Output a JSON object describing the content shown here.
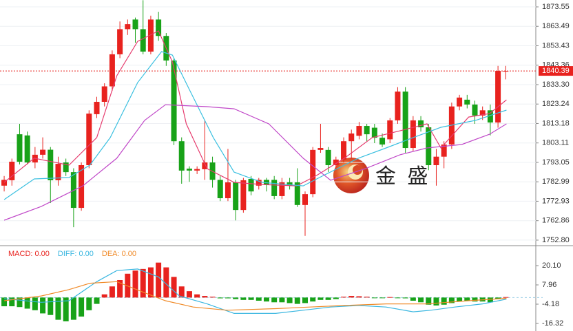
{
  "chart_data": [
    {
      "type": "candlestick",
      "up_color": "#e8221e",
      "down_color": "#18a218",
      "grid": true,
      "open": [
        1781,
        1783.8,
        1807.6,
        1807,
        1793,
        1797,
        1799.6,
        1783.8,
        1793,
        1788,
        1769.5,
        1791.6,
        1818,
        1824.4,
        1832.4,
        1849,
        1862,
        1867,
        1862,
        1850.4,
        1867,
        1858.5,
        1845.8,
        1804,
        1789.8,
        1788.8,
        1789.5,
        1793,
        1784,
        1774.5,
        1782.7,
        1768.4,
        1784.5,
        1781,
        1784,
        1784,
        1775.6,
        1782.7,
        1782.7,
        1771,
        1776.6,
        1799.5,
        1799.5,
        1791.6,
        1794.5,
        1804,
        1806.8,
        1811.9,
        1811,
        1805.8,
        1805,
        1814.8,
        1829.7,
        1800.5,
        1814.8,
        1811.2,
        1791.6,
        1796,
        1802.3,
        1822,
        1825.5,
        1823,
        1817.3,
        1820,
        1813.7,
        1840.3
      ],
      "high": [
        1786,
        1795,
        1813,
        1809,
        1801,
        1806,
        1801,
        1796,
        1795,
        1790,
        1793,
        1820,
        1827,
        1834,
        1851,
        1866,
        1867,
        1868,
        1877,
        1869,
        1871,
        1860,
        1847,
        1806,
        1791,
        1791,
        1815,
        1796,
        1786,
        1800,
        1784,
        1785,
        1786,
        1785,
        1785,
        1786,
        1785,
        1785,
        1790,
        1778,
        1801,
        1813,
        1801,
        1796,
        1806,
        1810,
        1814,
        1813,
        1813,
        1808,
        1816,
        1832,
        1832,
        1817,
        1817,
        1813,
        1800,
        1804,
        1824,
        1828,
        1828,
        1825,
        1822,
        1823,
        1843,
        1843
      ],
      "low": [
        1778,
        1781,
        1792,
        1792,
        1790,
        1795,
        1772,
        1781,
        1786,
        1759.5,
        1768,
        1790,
        1816,
        1822,
        1830,
        1847,
        1859,
        1855,
        1849,
        1849,
        1856,
        1843,
        1802,
        1782,
        1783,
        1787,
        1784,
        1780,
        1773,
        1773,
        1763,
        1767,
        1776,
        1779,
        1778,
        1774,
        1774,
        1779,
        1770,
        1755,
        1775,
        1798,
        1788,
        1789,
        1793,
        1795,
        1805,
        1804,
        1803,
        1801,
        1803,
        1813,
        1798,
        1799,
        1809,
        1789,
        1781,
        1790,
        1800,
        1820,
        1821,
        1813,
        1815,
        1807,
        1811,
        1836
      ],
      "close": [
        1784,
        1793.4,
        1793.4,
        1793,
        1797,
        1799.6,
        1783.8,
        1792.3,
        1788,
        1769.5,
        1791.6,
        1818.3,
        1824.4,
        1832.4,
        1849,
        1862,
        1864.6,
        1862,
        1850.4,
        1867,
        1858.5,
        1845.8,
        1804,
        1788.8,
        1788.8,
        1789.6,
        1793,
        1784,
        1774.5,
        1782.7,
        1768.4,
        1783.8,
        1778,
        1784,
        1781.6,
        1775.6,
        1782.7,
        1781,
        1771,
        1776.6,
        1799.5,
        1800.5,
        1791.6,
        1794.5,
        1804,
        1808,
        1811.9,
        1807.6,
        1805.8,
        1802.3,
        1814.8,
        1829.7,
        1800.5,
        1814.8,
        1811.2,
        1791.6,
        1796,
        1802.3,
        1822,
        1826.6,
        1823,
        1817.3,
        1820,
        1813.7,
        1840.4,
        1840.39
      ],
      "xlim": [
        -0.54,
        68.9
      ],
      "ylim": [
        1750.64,
        1877.11
      ],
      "yticks": [
        {
          "value": 1752.8,
          "label": "1752.80"
        },
        1762.86,
        1772.93,
        1782.99,
        1793.05,
        1803.11,
        1813.18,
        1823.24,
        {
          "value": 1833.3,
          "label": "1833.30"
        },
        1843.36,
        1853.43,
        1863.49,
        1873.55
      ],
      "overlays": [
        {
          "color": "#e63c6e",
          "x": [
            0,
            3.9,
            8.4,
            12,
            14.6,
            17.3,
            20,
            21.8,
            23.6,
            26.3,
            29.8,
            33.4,
            37.9,
            40.5,
            44.1,
            47.7,
            51.3,
            54.8,
            56.6,
            60.2,
            62.9,
            65.1
          ],
          "values": [
            1782.7,
            1795.2,
            1791.6,
            1805.9,
            1837.9,
            1855.7,
            1861.1,
            1845.1,
            1813,
            1789.8,
            1782.7,
            1781.6,
            1780.9,
            1786.3,
            1795.2,
            1805.9,
            1809.4,
            1813,
            1800.5,
            1816.5,
            1818.3,
            1825.4
          ]
        },
        {
          "color": "#3cc0e0",
          "x": [
            0,
            3.9,
            8.4,
            11.1,
            13.75,
            17.3,
            20.4,
            21.8,
            24,
            27.1,
            29.8,
            33.4,
            38.75,
            41.4,
            45.9,
            49.5,
            53,
            56.6,
            61.1,
            65.1
          ],
          "values": [
            1773.8,
            1784.5,
            1785.2,
            1791.6,
            1805.9,
            1834.4,
            1850.4,
            1848.6,
            1830.8,
            1805.9,
            1788,
            1782.7,
            1780.9,
            1786.3,
            1795.2,
            1800.5,
            1805.9,
            1811.2,
            1814.8,
            1820.1
          ]
        },
        {
          "color": "#c048c8",
          "x": [
            0,
            4.8,
            10.2,
            14.6,
            18.2,
            20.9,
            26.3,
            29.8,
            34.3,
            38.75,
            42.3,
            46.8,
            51.3,
            54.8,
            59.3,
            62.9,
            65.1
          ],
          "values": [
            1763.1,
            1770.2,
            1780.9,
            1795.2,
            1814.8,
            1822.9,
            1821.9,
            1820.8,
            1813,
            1795.2,
            1783.8,
            1789.8,
            1797,
            1800.5,
            1802.3,
            1807.6,
            1813
          ]
        }
      ],
      "last_price": {
        "value": 1840.39,
        "label": "1840.39",
        "color": "#e8221e"
      },
      "watermark": "金 盛"
    },
    {
      "type": "macd",
      "up_color": "#e8221e",
      "down_color": "#18a218",
      "values": [
        -5.5,
        -5.5,
        -6,
        -7,
        -8,
        -10,
        -11,
        -14,
        -15,
        -14,
        -12,
        -8,
        -4,
        2,
        7,
        11,
        15,
        17,
        18,
        19,
        22,
        19,
        13,
        7,
        4,
        2,
        1,
        0.5,
        -0.5,
        -0.5,
        -1,
        -1.5,
        -1.5,
        -2,
        -2.5,
        -3,
        -3,
        -3.5,
        -4,
        -3.5,
        -2.5,
        -1.5,
        -1.5,
        -1,
        0.5,
        1,
        0.8,
        0.5,
        -0.3,
        -0.3,
        0.3,
        -0.3,
        -0.5,
        -2,
        -3,
        -4.5,
        -5,
        -4.5,
        -3.5,
        -2.5,
        -2,
        -2.5,
        -2.5,
        -3,
        -1,
        0.3
      ],
      "lines": [
        {
          "color": "#38b6e0",
          "x": [
            0,
            4.8,
            8.4,
            12,
            14.6,
            17.3,
            20,
            22.7,
            26.3,
            29.8,
            35.2,
            38.75,
            42.3,
            45.9,
            49.5,
            53,
            55.3,
            58.4,
            62,
            65.1
          ],
          "values": [
            -0.7,
            -3,
            -2,
            10,
            17,
            18,
            13,
            1,
            -4,
            -10,
            -10,
            -8,
            -6,
            -5,
            -6,
            -9,
            -8,
            -6,
            -4,
            -1
          ]
        },
        {
          "color": "#f08a28",
          "x": [
            0,
            4.8,
            8.4,
            11.1,
            14.6,
            18.2,
            20.9,
            24.5,
            28.9,
            35.2,
            39.6,
            44.1,
            49.5,
            54.8,
            60.2,
            65.1
          ],
          "values": [
            -2,
            1,
            5,
            9,
            10,
            3,
            -2,
            -6,
            -8,
            -7,
            -6,
            -5,
            -4,
            -4,
            -2,
            -0.5
          ]
        }
      ],
      "legend": [
        {
          "text": "MACD: 0.00",
          "color": "#e8221e"
        },
        {
          "text": "DIFF: 0.00",
          "color": "#38b6e0"
        },
        {
          "text": "DEA: 0.00",
          "color": "#f08a28"
        }
      ],
      "xlim": [
        -0.54,
        68.9
      ],
      "ylim": [
        -19.79,
        31.38
      ],
      "yticks": [
        -16.32,
        -4.18,
        7.96,
        {
          "value": 20.1,
          "label": "20.10"
        }
      ]
    }
  ]
}
